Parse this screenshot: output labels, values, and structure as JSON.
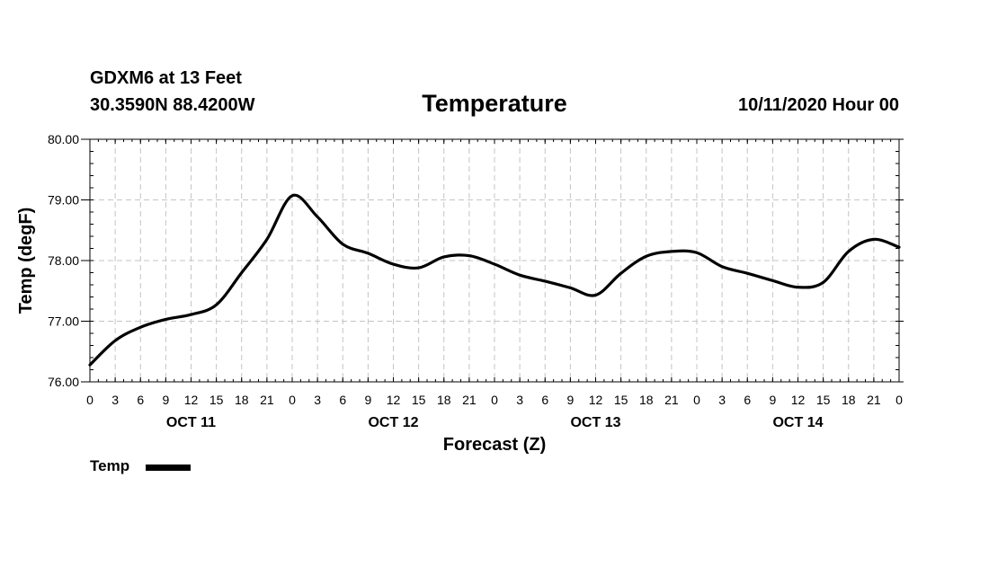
{
  "header": {
    "station": "GDXM6 at 13 Feet",
    "coords": "30.3590N 88.4200W",
    "title": "Temperature",
    "run": "10/11/2020 Hour 00"
  },
  "legend": {
    "label": "Temp"
  },
  "chart_data": {
    "type": "line",
    "title": "Temperature",
    "xlabel": "Forecast (Z)",
    "ylabel": "Temp (degF)",
    "ylim": [
      76,
      80
    ],
    "yticks": [
      "76.00",
      "77.00",
      "78.00",
      "79.00",
      "80.00"
    ],
    "xlim": [
      0,
      96
    ],
    "x_tick_step_hours": 3,
    "xtick_labels": [
      "0",
      "3",
      "6",
      "9",
      "12",
      "15",
      "18",
      "21",
      "0",
      "3",
      "6",
      "9",
      "12",
      "15",
      "18",
      "21",
      "0",
      "3",
      "6",
      "9",
      "12",
      "15",
      "18",
      "21",
      "0",
      "3",
      "6",
      "9",
      "12",
      "15",
      "18",
      "21",
      "0"
    ],
    "day_labels": [
      {
        "label": "OCT 11",
        "hour": 12
      },
      {
        "label": "OCT 12",
        "hour": 36
      },
      {
        "label": "OCT 13",
        "hour": 60
      },
      {
        "label": "OCT 14",
        "hour": 84
      }
    ],
    "grid": true,
    "series": [
      {
        "name": "Temp",
        "color": "#000000",
        "x": [
          0,
          3,
          6,
          9,
          12,
          15,
          18,
          21,
          24,
          27,
          30,
          33,
          36,
          39,
          42,
          45,
          48,
          51,
          54,
          57,
          60,
          63,
          66,
          69,
          72,
          75,
          78,
          81,
          84,
          87,
          90,
          93,
          96
        ],
        "values": [
          76.28,
          76.68,
          76.9,
          77.03,
          77.11,
          77.27,
          77.8,
          78.35,
          79.07,
          78.72,
          78.27,
          78.12,
          77.94,
          77.88,
          78.06,
          78.08,
          77.94,
          77.76,
          77.66,
          77.55,
          77.43,
          77.79,
          78.07,
          78.15,
          78.13,
          77.9,
          77.79,
          77.67,
          77.56,
          77.64,
          78.15,
          78.35,
          78.22
        ]
      }
    ]
  }
}
